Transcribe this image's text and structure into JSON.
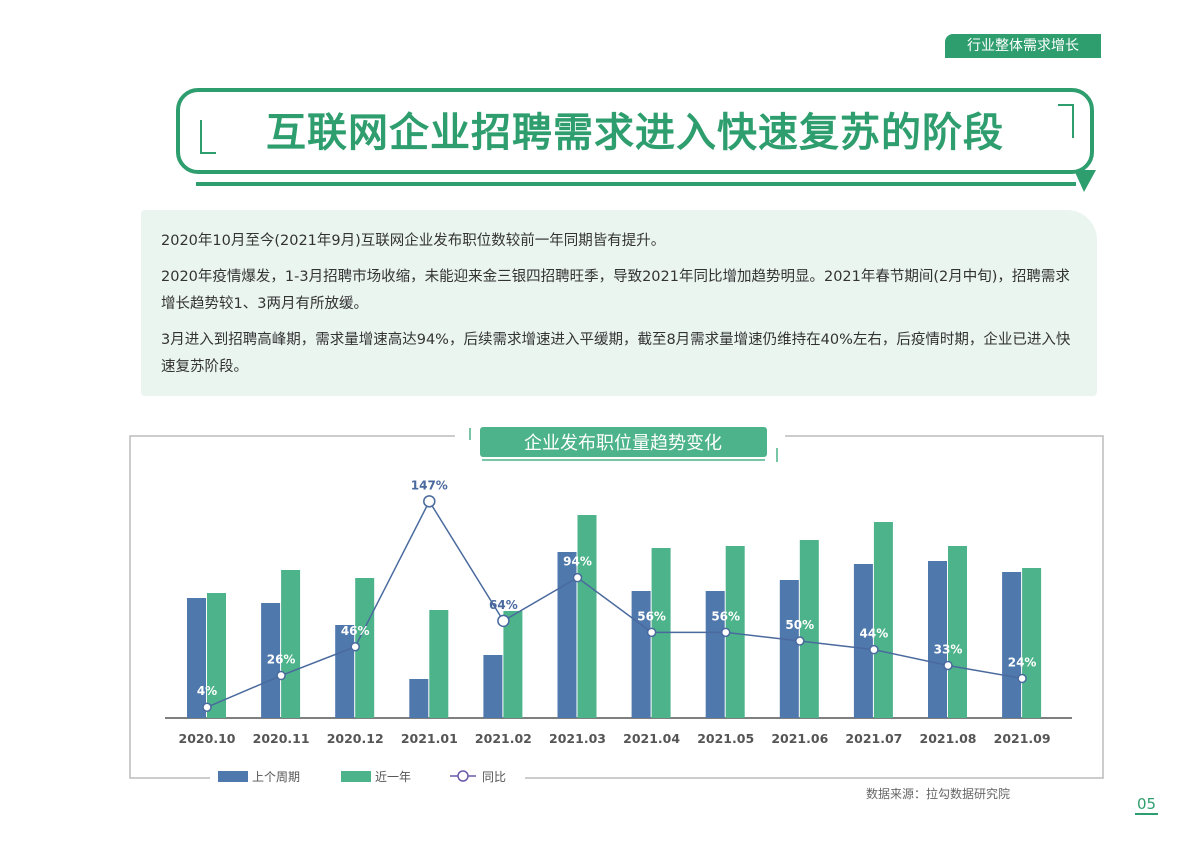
{
  "section_tag": "行业整体需求增长",
  "title": "互联网企业招聘需求进入快速复苏的阶段",
  "summary": [
    "2020年10月至今(2021年9月)互联网企业发布职位数较前一年同期皆有提升。",
    "2020年疫情爆发，1-3月招聘市场收缩，未能迎来金三银四招聘旺季，导致2021年同比增加趋势明显。2021年春节期间(2月中旬)，招聘需求增长趋势较1、3两月有所放缓。",
    "3月进入到招聘高峰期，需求量增速高达94%，后续需求增速进入平缓期，截至8月需求量增速仍维持在40%左右，后疫情时期，企业已进入快速复苏阶段。"
  ],
  "source": "数据来源：拉勾数据研究院",
  "page_number": "05",
  "colors": {
    "accent": "#2f9e6f",
    "blue": "#4f78ad",
    "green": "#4db38a",
    "line": "#4a6a9e"
  },
  "chart_data": {
    "type": "bar+line",
    "title": "企业发布职位量趋势变化",
    "categories": [
      "2020.10",
      "2020.11",
      "2020.12",
      "2021.01",
      "2021.02",
      "2021.03",
      "2021.04",
      "2021.05",
      "2021.06",
      "2021.07",
      "2021.08",
      "2021.09"
    ],
    "series": [
      {
        "name": "上个周期",
        "type": "bar",
        "values": [
          120,
          115,
          93,
          39,
          63,
          166,
          127,
          127,
          138,
          154,
          157,
          146
        ]
      },
      {
        "name": "近一年",
        "type": "bar",
        "values": [
          125,
          148,
          140,
          108,
          107,
          203,
          170,
          172,
          178,
          196,
          172,
          150
        ]
      },
      {
        "name": "同比",
        "type": "line",
        "values": [
          4,
          26,
          46,
          147,
          64,
          94,
          56,
          56,
          50,
          44,
          33,
          24
        ],
        "labels": [
          "4%",
          "26%",
          "46%",
          "147%",
          "64%",
          "94%",
          "56%",
          "56%",
          "50%",
          "44%",
          "33%",
          "24%"
        ]
      }
    ],
    "bar_value_note_hidden": true,
    "legend": "bottom-left",
    "grid": false
  }
}
